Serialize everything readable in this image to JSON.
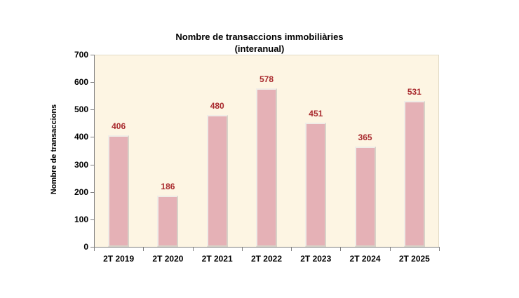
{
  "title": "Nombre de transaccions immobiliàries",
  "subtitle": "(interanual)",
  "chart_data": {
    "type": "bar",
    "title": "Nombre de transaccions immobiliàries (interanual)",
    "categories": [
      "2T 2019",
      "2T 2020",
      "2T 2021",
      "2T 2022",
      "2T 2023",
      "2T 2024",
      "2T 2025"
    ],
    "values": [
      406,
      186,
      480,
      578,
      451,
      365,
      531
    ],
    "xlabel": "",
    "ylabel": "Nombre de transaccions",
    "ylim": [
      0,
      700
    ],
    "yticks": [
      0,
      100,
      200,
      300,
      400,
      500,
      600,
      700
    ],
    "grid": false,
    "legend": false,
    "value_labels": true,
    "colors": {
      "plot_bg": "#FDF5E3",
      "bar_fill": "#E5B1B6",
      "bar_border_light": "#F0EDE7",
      "bar_border_dark": "#D8D2C8",
      "value_label": "#A92A2E",
      "axis": "#7F7F7F",
      "text": "#000000"
    }
  }
}
